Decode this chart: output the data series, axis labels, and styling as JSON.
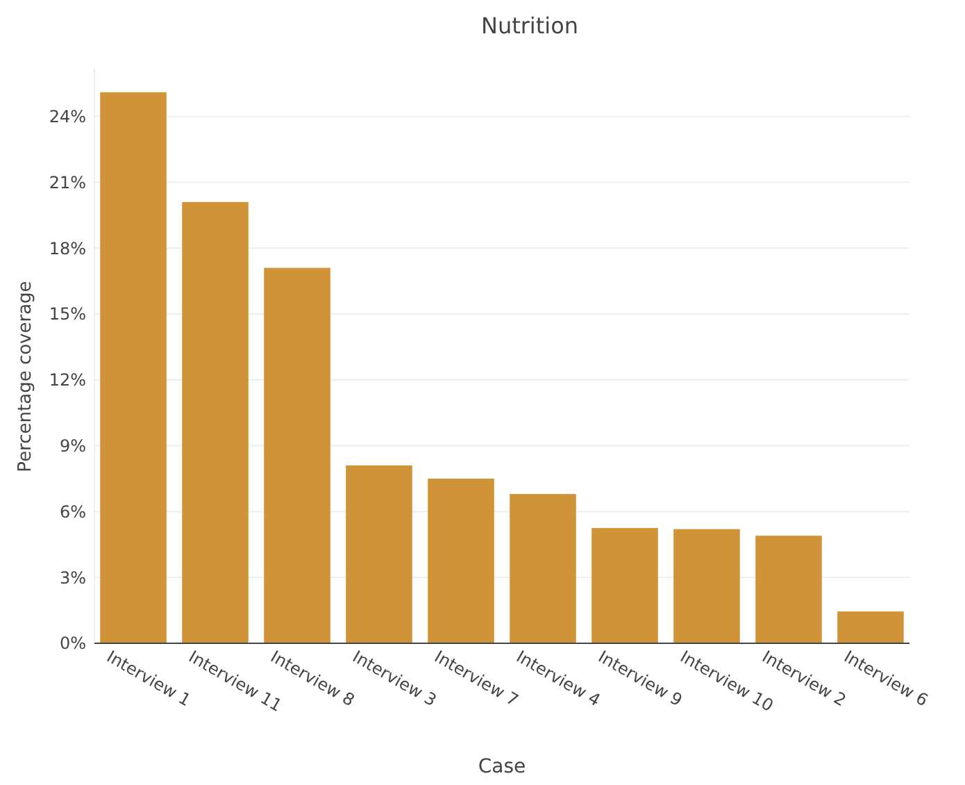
{
  "chart_data": {
    "type": "bar",
    "title": "Nutrition",
    "xlabel": "Case",
    "ylabel": "Percentage coverage",
    "categories": [
      "Interview 1",
      "Interview 11",
      "Interview 8",
      "Interview 3",
      "Interview 7",
      "Interview 4",
      "Interview 9",
      "Interview 10",
      "Interview 2",
      "Interview 6"
    ],
    "values": [
      25.1,
      20.1,
      17.1,
      8.1,
      7.5,
      6.8,
      5.25,
      5.2,
      4.9,
      1.45
    ],
    "color": "#d19337",
    "ylim": [
      0,
      26.2
    ],
    "yticks": [
      {
        "value": 0,
        "label": "0%"
      },
      {
        "value": 3,
        "label": "3%"
      },
      {
        "value": 6,
        "label": "6%"
      },
      {
        "value": 9,
        "label": "9%"
      },
      {
        "value": 12,
        "label": "12%"
      },
      {
        "value": 15,
        "label": "15%"
      },
      {
        "value": 18,
        "label": "18%"
      },
      {
        "value": 21,
        "label": "21%"
      },
      {
        "value": 24,
        "label": "24%"
      }
    ],
    "grid": "y"
  }
}
